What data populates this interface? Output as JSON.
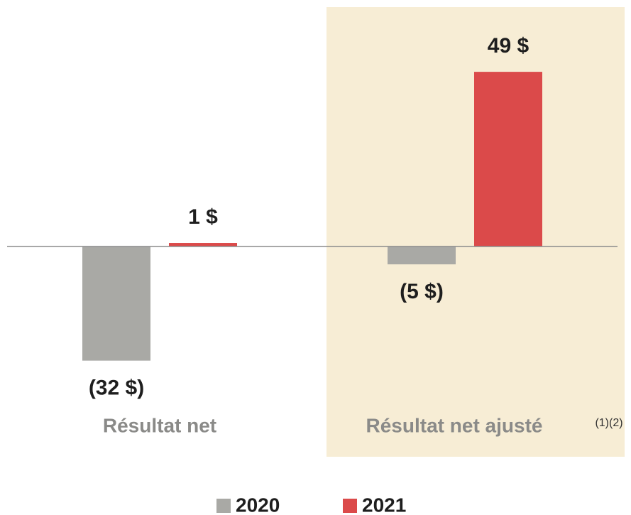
{
  "chart_data": {
    "type": "bar",
    "categories": [
      "Résultat net",
      "Résultat net ajusté"
    ],
    "series": [
      {
        "name": "2020",
        "color": "#a9a9a5",
        "values": [
          -32,
          -5
        ],
        "value_labels": [
          "(32 $)",
          "(5 $)"
        ]
      },
      {
        "name": "2021",
        "color": "#db4a4a",
        "values": [
          1,
          49
        ],
        "value_labels": [
          "1 $",
          "49 $"
        ]
      }
    ],
    "annotation": "(1)(2)",
    "ylim": [
      -50,
      55
    ],
    "legend": "bottom"
  }
}
